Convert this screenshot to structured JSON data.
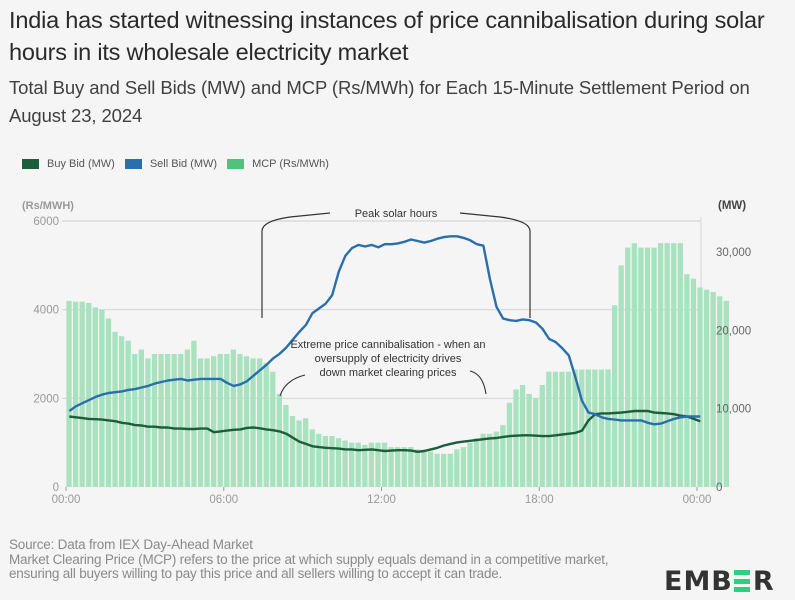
{
  "title": "India has started witnessing instances of price cannibalisation during solar hours in its wholesale electricity market",
  "subtitle": "Total Buy and Sell Bids (MW) and MCP (Rs/MWh) for Each 15-Minute Settlement Period on August 23, 2024",
  "legend": [
    {
      "label": "Buy Bid (MW)",
      "color": "#1c5e3a"
    },
    {
      "label": "Sell Bid (MW)",
      "color": "#2a6fad"
    },
    {
      "label": "MCP (Rs/MWh)",
      "color": "#4fc37e"
    }
  ],
  "footer": {
    "source": "Source: Data from IEX Day-Ahead Market",
    "note": "Market Clearing Price (MCP) refers to the price at which supply equals demand in a competitive market, ensuring all buyers willing to pay this price and all sellers willing to accept it can trade."
  },
  "logo": {
    "pre": "EMB",
    "post": "R"
  },
  "colors": {
    "bar": "#a8e2bf",
    "bar_edge": "#e9f8ef",
    "buy": "#1c5e3a",
    "sell": "#2a6fad",
    "grid": "#d6d6d6",
    "axis_text": "#9a9a9a",
    "annot": "#333333"
  },
  "chart_data": {
    "type": "bar",
    "title": "Total Buy and Sell Bids (MW) and MCP (Rs/MWh) for Each 15-Minute Settlement Period on August 23, 2024",
    "left_axis": {
      "label": "(Rs/MWH)",
      "ticks": [
        "0",
        "2000",
        "4000",
        "6000"
      ],
      "tick_values": [
        0,
        2000,
        4000,
        6000
      ],
      "range": [
        0,
        6000
      ]
    },
    "right_axis": {
      "label": "(MW)",
      "ticks": [
        "0",
        "10,000",
        "20,000",
        "30,000"
      ],
      "tick_values": [
        0,
        10000,
        20000,
        30000
      ],
      "range": [
        0,
        34000
      ]
    },
    "x_ticks": [
      "00:00",
      "06:00",
      "12:00",
      "18:00",
      "00:00"
    ],
    "x_tick_index": [
      0,
      24,
      48,
      72,
      96
    ],
    "grid": true,
    "legend_position": "top-left",
    "series": [
      {
        "name": "MCP (Rs/MWh)",
        "type": "bar",
        "axis": "left",
        "values": [
          4200,
          4180,
          4180,
          4150,
          4050,
          4000,
          3800,
          3500,
          3400,
          3300,
          3000,
          3100,
          2900,
          3000,
          3000,
          3000,
          3000,
          3000,
          3100,
          3300,
          2900,
          2900,
          2950,
          3000,
          3000,
          3100,
          3000,
          2950,
          2900,
          2900,
          2800,
          2600,
          2100,
          1850,
          1600,
          1500,
          1550,
          1300,
          1200,
          1150,
          1150,
          1100,
          1050,
          1000,
          1000,
          950,
          1000,
          1000,
          1000,
          900,
          900,
          900,
          900,
          850,
          800,
          800,
          750,
          750,
          750,
          850,
          900,
          1000,
          1100,
          1200,
          1200,
          1250,
          1400,
          1900,
          2200,
          2300,
          2100,
          2000,
          2300,
          2600,
          2600,
          2600,
          2600,
          2650,
          2650,
          2650,
          2650,
          2650,
          2650,
          4100,
          5000,
          5400,
          5500,
          5400,
          5400,
          5400,
          5500,
          5500,
          5500,
          5500,
          4800,
          4700,
          4500,
          4450,
          4400,
          4300,
          4200
        ]
      },
      {
        "name": "Sell Bid (MW)",
        "type": "line",
        "axis": "right",
        "values": [
          9700,
          10300,
          10700,
          11100,
          11500,
          11800,
          12000,
          12100,
          12200,
          12400,
          12500,
          12700,
          12900,
          13200,
          13400,
          13600,
          13700,
          13800,
          13600,
          13700,
          13800,
          13800,
          13800,
          13800,
          13300,
          12900,
          13100,
          13500,
          14200,
          14900,
          15600,
          16400,
          17000,
          17800,
          18800,
          19800,
          20700,
          22200,
          22800,
          23400,
          24500,
          27500,
          29500,
          30500,
          30900,
          30700,
          30900,
          30600,
          31000,
          31000,
          31100,
          31300,
          31600,
          31400,
          31200,
          31400,
          31700,
          31900,
          32000,
          32000,
          31800,
          31500,
          31000,
          30800,
          26500,
          23000,
          21500,
          21300,
          21200,
          21400,
          21300,
          21000,
          20200,
          18900,
          18500,
          17700,
          16800,
          14000,
          11000,
          9500,
          9300,
          8900,
          8700,
          8600,
          8500,
          8500,
          8500,
          8500,
          8200,
          8000,
          8100,
          8400,
          8700,
          8900,
          9000,
          9000,
          9000
        ]
      },
      {
        "name": "Buy Bid (MW)",
        "type": "line",
        "axis": "right",
        "values": [
          9000,
          8900,
          8800,
          8700,
          8650,
          8600,
          8500,
          8400,
          8200,
          8100,
          7900,
          7850,
          7700,
          7700,
          7600,
          7600,
          7450,
          7450,
          7400,
          7400,
          7450,
          7450,
          7000,
          7100,
          7200,
          7300,
          7350,
          7550,
          7600,
          7500,
          7350,
          7250,
          7100,
          6800,
          6300,
          5800,
          5500,
          5200,
          5100,
          5000,
          4950,
          4900,
          4800,
          4800,
          4700,
          4750,
          4800,
          4700,
          4600,
          4650,
          4700,
          4700,
          4650,
          4500,
          4600,
          4800,
          5000,
          5300,
          5500,
          5700,
          5800,
          5900,
          6000,
          6100,
          6200,
          6250,
          6400,
          6500,
          6550,
          6600,
          6600,
          6550,
          6500,
          6500,
          6600,
          6700,
          6800,
          6900,
          7200,
          8500,
          9300,
          9400,
          9400,
          9450,
          9500,
          9600,
          9700,
          9700,
          9700,
          9500,
          9450,
          9400,
          9300,
          9100,
          9000,
          8700,
          8400
        ]
      }
    ],
    "annotations": [
      {
        "text": "Peak solar hours",
        "type": "bracket",
        "from": "07:30",
        "to": "17:30"
      },
      {
        "text": "Extreme price cannibalisation - when an oversupply of electricity drives down market clearing prices",
        "type": "callout",
        "points_to": [
          "08:00",
          "15:45"
        ]
      }
    ]
  }
}
